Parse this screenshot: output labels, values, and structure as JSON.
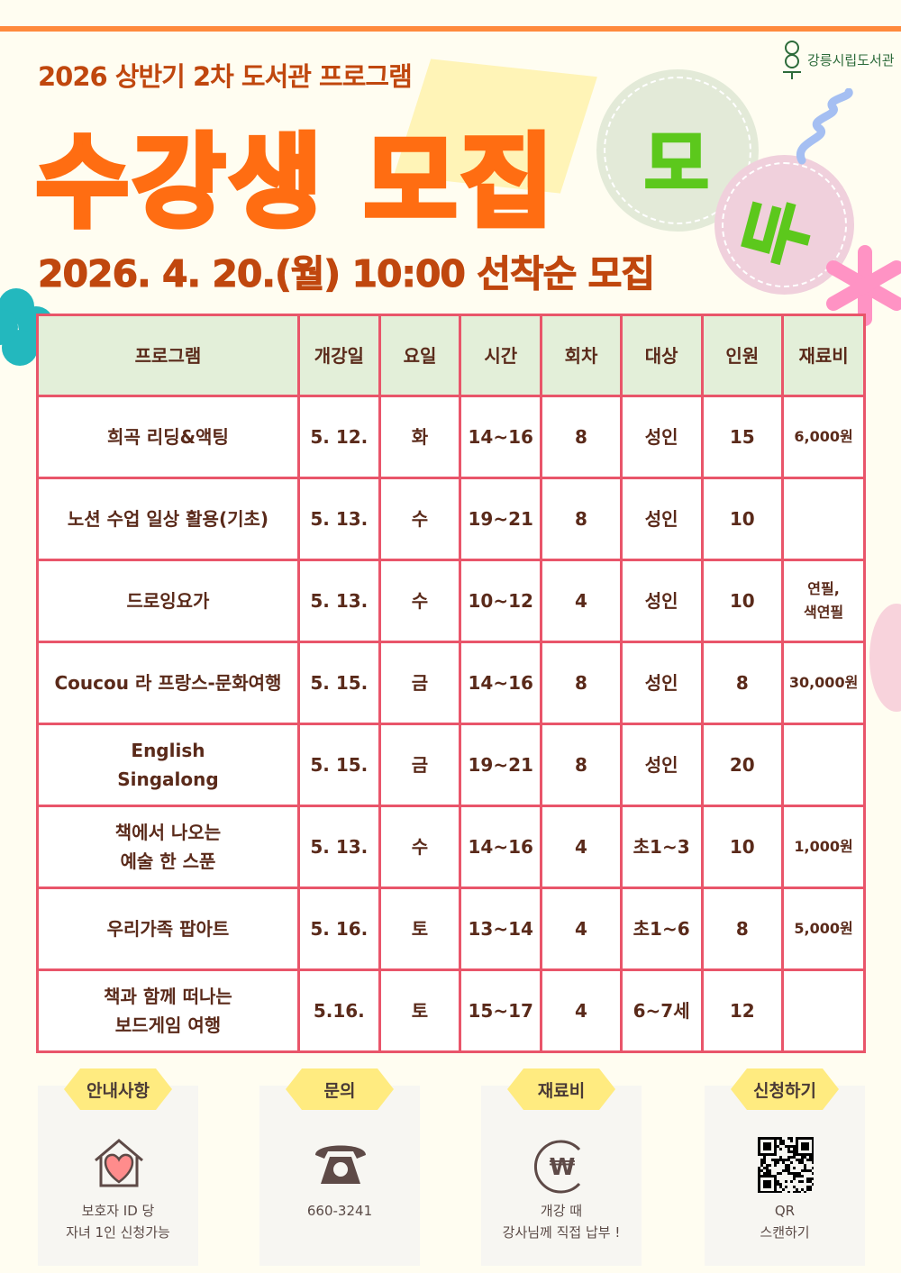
{
  "header": {
    "subtitle": "2026 상반기 2차 도서관 프로그램",
    "title": "수강생 모집",
    "badge_1": "모",
    "badge_2": "두",
    "date_line": "2026. 4. 20.(월) 10:00 선착순 모집",
    "logo_text": "강릉시립도서관"
  },
  "colors": {
    "accent_orange": "#ff6d12",
    "dark_orange": "#c0470e",
    "table_border": "#e9556a",
    "header_bg": "#e3efd9",
    "badge_yellow": "#ffeb80",
    "green": "#5cc81c"
  },
  "table": {
    "headers": [
      "프로그램",
      "개강일",
      "요일",
      "시간",
      "회차",
      "대상",
      "인원",
      "재료비"
    ],
    "rows": [
      [
        "희곡 리딩&액팅",
        "5. 12.",
        "화",
        "14~16",
        "8",
        "성인",
        "15",
        "6,000원"
      ],
      [
        "노션 수업 일상 활용(기초)",
        "5. 13.",
        "수",
        "19~21",
        "8",
        "성인",
        "10",
        ""
      ],
      [
        "드로잉요가",
        "5. 13.",
        "수",
        "10~12",
        "4",
        "성인",
        "10",
        "연필,\n색연필"
      ],
      [
        "Coucou 라 프랑스-문화여행",
        "5. 15.",
        "금",
        "14~16",
        "8",
        "성인",
        "8",
        "30,000원"
      ],
      [
        "English\nSingalong",
        "5. 15.",
        "금",
        "19~21",
        "8",
        "성인",
        "20",
        ""
      ],
      [
        "책에서 나오는\n예술 한 스푼",
        "5. 13.",
        "수",
        "14~16",
        "4",
        "초1~3",
        "10",
        "1,000원"
      ],
      [
        "우리가족 팝아트",
        "5. 16.",
        "토",
        "13~14",
        "4",
        "초1~6",
        "8",
        "5,000원"
      ],
      [
        "책과 함께 떠나는\n보드게임 여행",
        "5.16.",
        "토",
        "15~17",
        "4",
        "6~7세",
        "12",
        ""
      ]
    ]
  },
  "info": [
    {
      "label": "안내사항",
      "icon": "house-heart-icon",
      "text": "보호자 ID 당\n자녀 1인 신청가능"
    },
    {
      "label": "문의",
      "icon": "telephone-icon",
      "text": "660-3241"
    },
    {
      "label": "재료비",
      "icon": "won-coin-icon",
      "text": "개강 때\n강사님께 직접 납부 !"
    },
    {
      "label": "신청하기",
      "icon": "qr-code-icon",
      "text": "QR\n스캔하기"
    }
  ]
}
